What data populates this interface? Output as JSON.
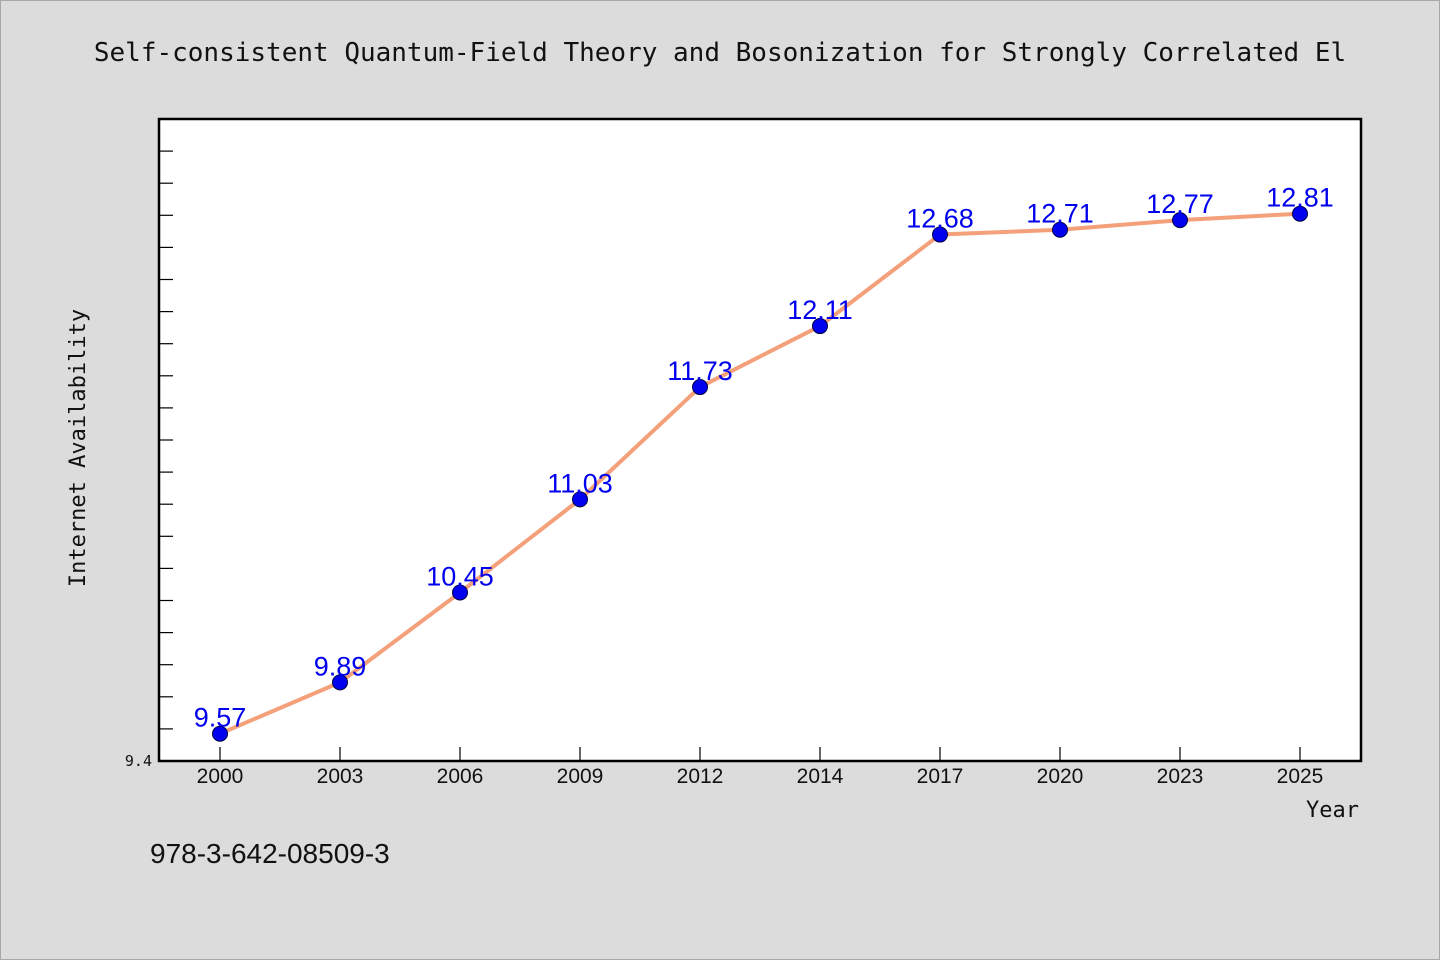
{
  "chart_data": {
    "type": "line",
    "title": "Self-consistent Quantum-Field Theory and Bosonization for Strongly Correlated El",
    "xlabel": "Year",
    "ylabel": "Internet Availability",
    "categories": [
      "2000",
      "2003",
      "2006",
      "2009",
      "2012",
      "2014",
      "2017",
      "2020",
      "2023",
      "2025"
    ],
    "values": [
      9.57,
      9.89,
      10.45,
      11.03,
      11.73,
      12.11,
      12.68,
      12.71,
      12.77,
      12.81
    ],
    "value_labels": [
      "9.57",
      "9.89",
      "10.45",
      "11.03",
      "11.73",
      "12.11",
      "12.68",
      "12.71",
      "12.77",
      "12.81"
    ],
    "ylim": [
      9.4,
      13.4
    ],
    "y_min_label": "9.4",
    "grid": false,
    "line_color": "#f4a07a",
    "marker_color": "#0000ee",
    "label_color": "#0000ee"
  },
  "footer": {
    "isbn": "978-3-642-08509-3"
  }
}
